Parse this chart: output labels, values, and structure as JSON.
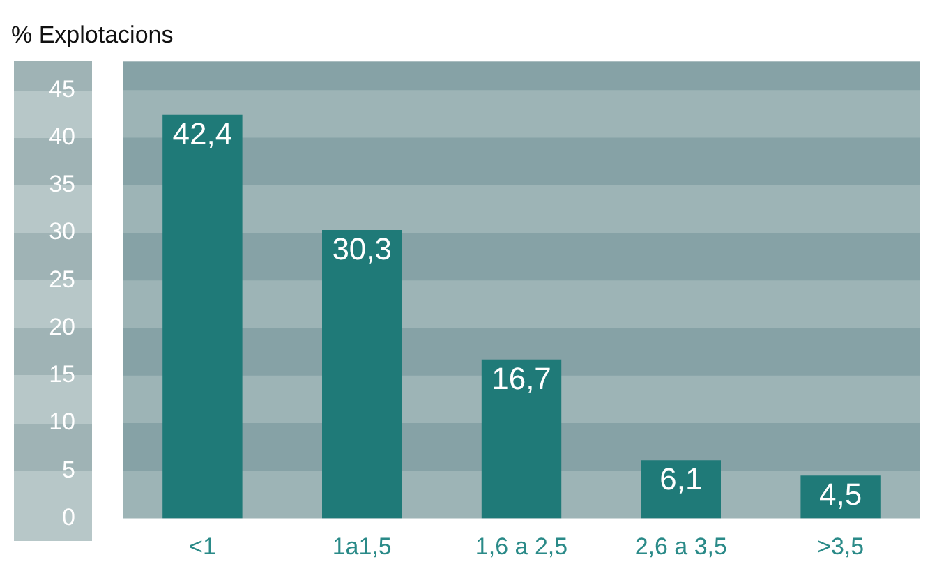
{
  "chart_data": {
    "type": "bar",
    "title": "% Explotacions",
    "categories": [
      "<1",
      "1a1,5",
      "1,6 a 2,5",
      "2,6 a 3,5",
      ">3,5"
    ],
    "values": [
      42.4,
      30.3,
      16.7,
      6.1,
      4.5
    ],
    "color": "#1f7a78",
    "ylim": [
      0,
      48
    ],
    "yticks": [
      0,
      5,
      10,
      15,
      20,
      25,
      30,
      35,
      40,
      45
    ],
    "value_labels": [
      "42,4",
      "30,3",
      "16,7",
      "6,1",
      "4,5"
    ],
    "bands": [
      {
        "axis": "y",
        "from": 5,
        "to": 10,
        "color": "#86a2a6"
      },
      {
        "axis": "y",
        "from": 15,
        "to": 20,
        "color": "#86a2a6"
      },
      {
        "axis": "y",
        "from": 25,
        "to": 30,
        "color": "#86a2a6"
      },
      {
        "axis": "y",
        "from": 35,
        "to": 40,
        "color": "#86a2a6"
      },
      {
        "axis": "y",
        "from": 45,
        "to": 48,
        "color": "#86a2a6"
      }
    ]
  }
}
